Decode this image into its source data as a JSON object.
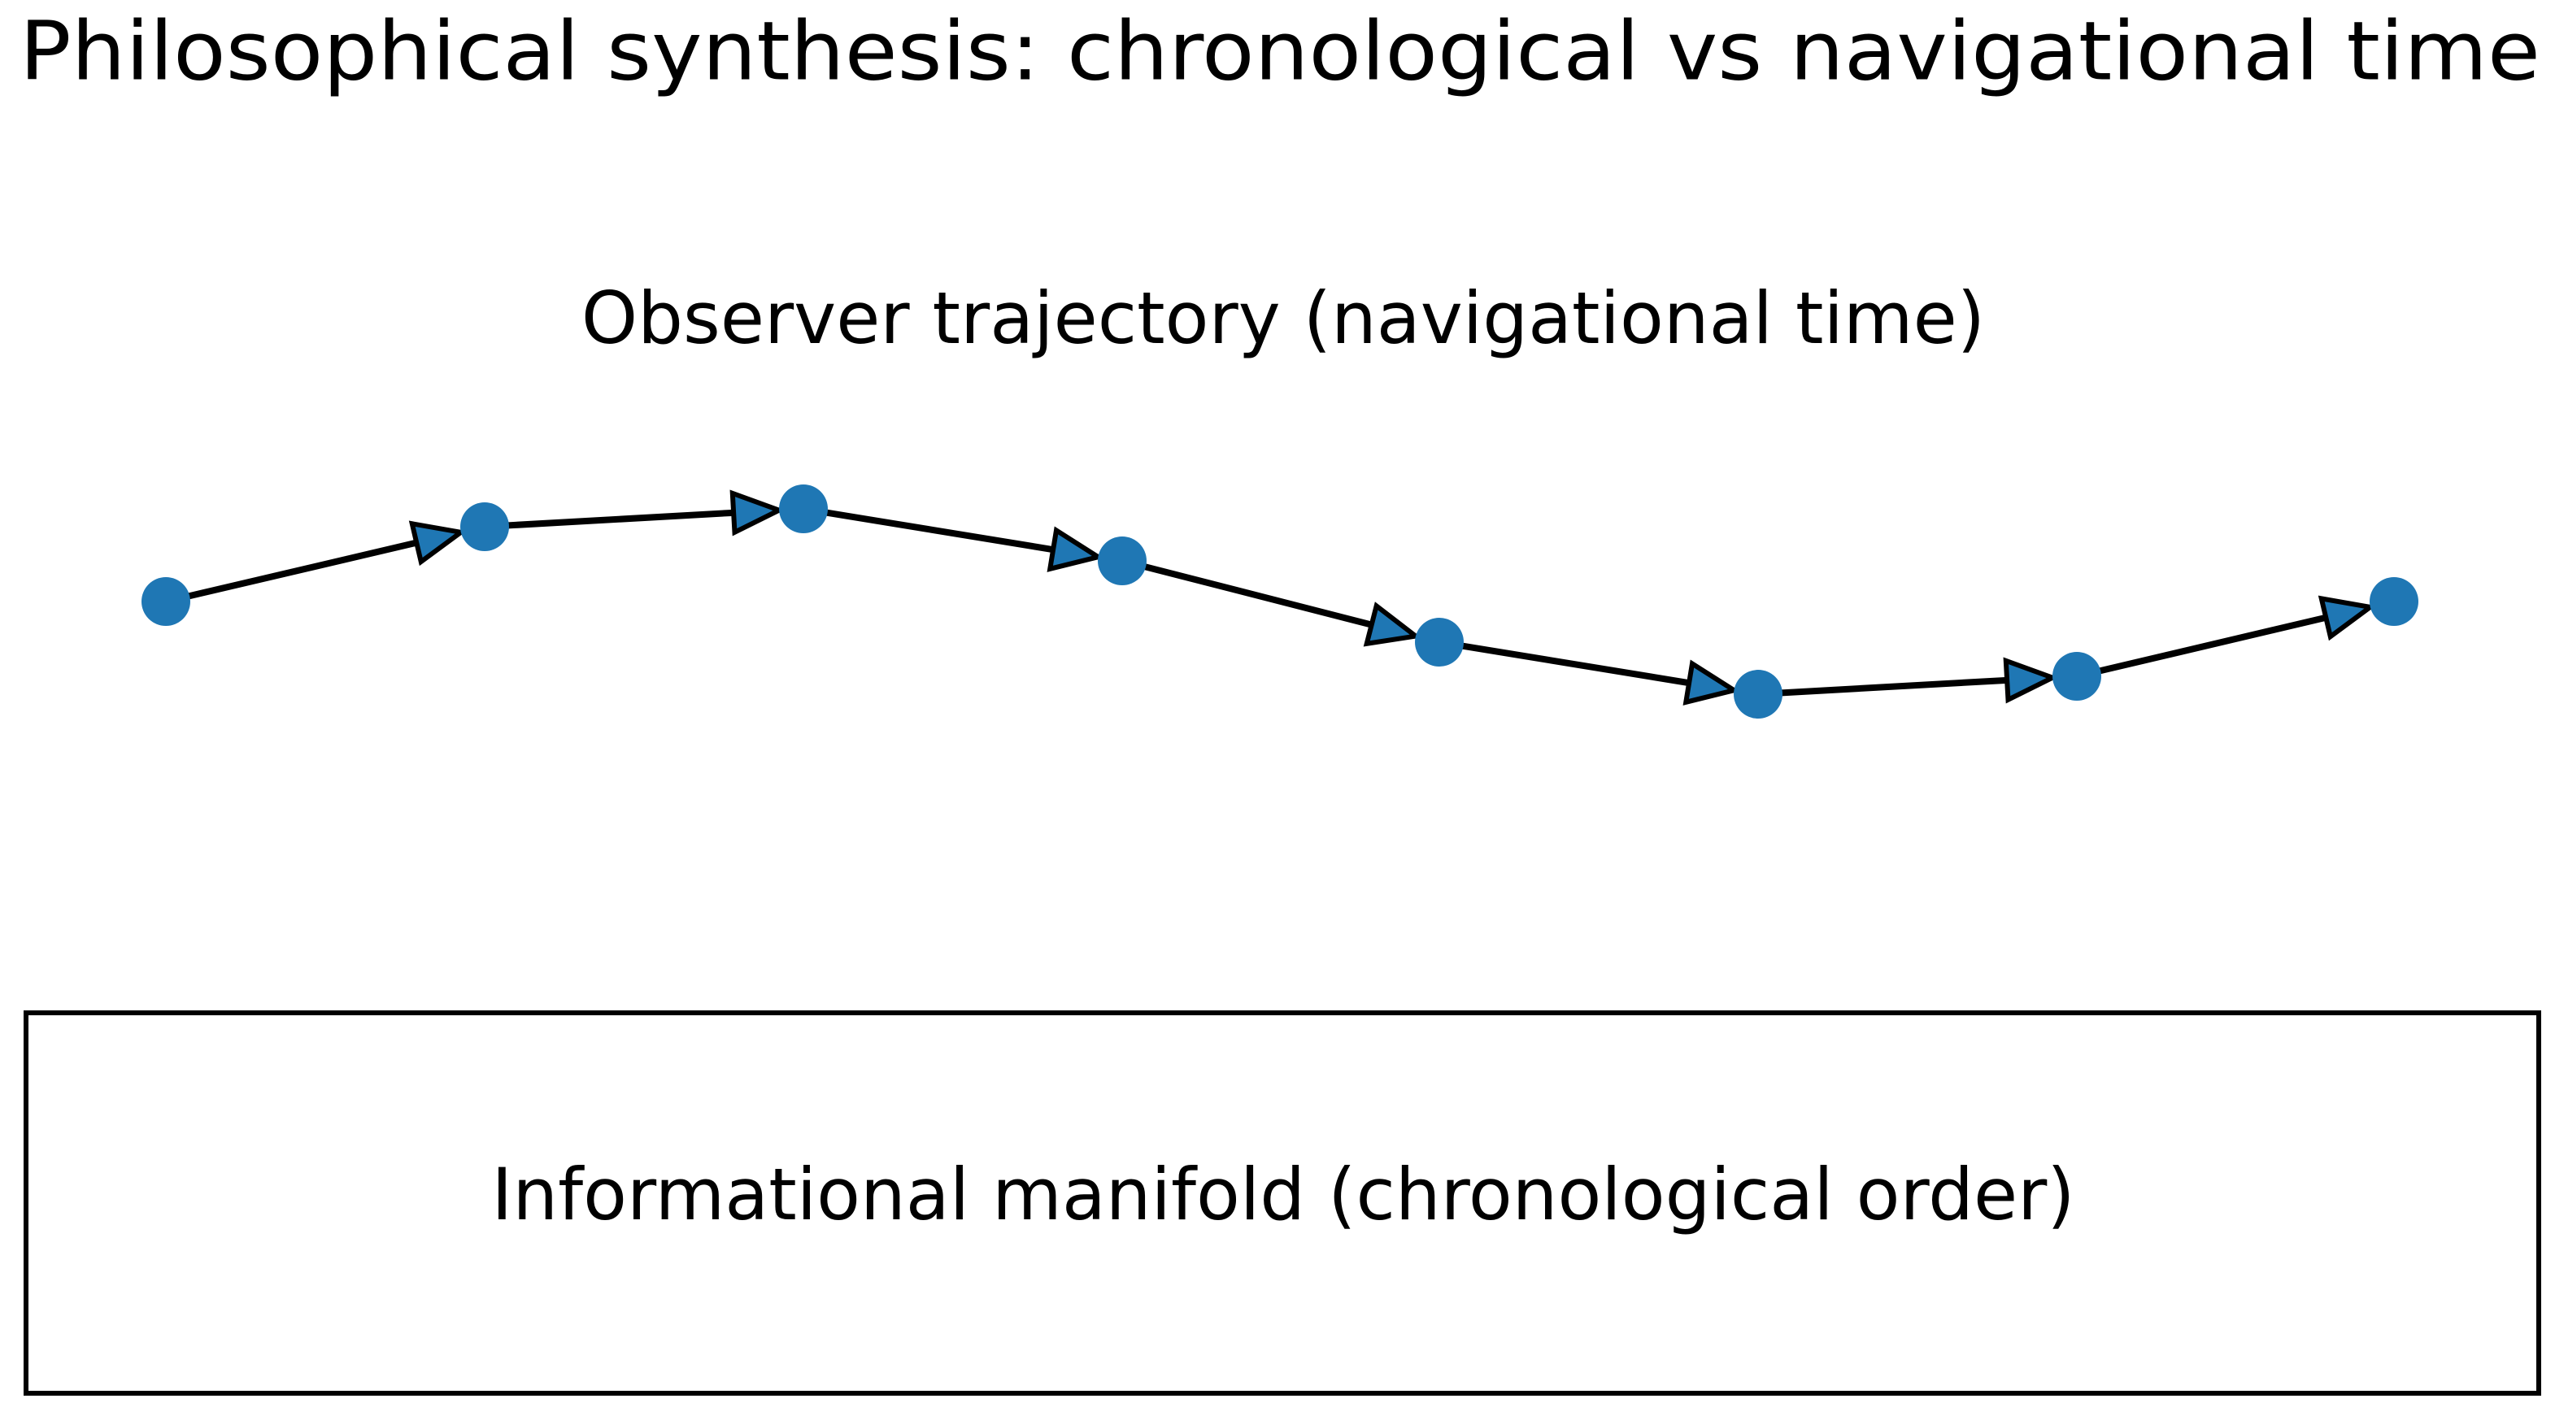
{
  "title": "Philosophical synthesis: chronological vs navigational time",
  "trajectory": {
    "label": "Observer trajectory (navigational time)"
  },
  "manifold": {
    "label": "Informational manifold (chronological order)"
  }
}
